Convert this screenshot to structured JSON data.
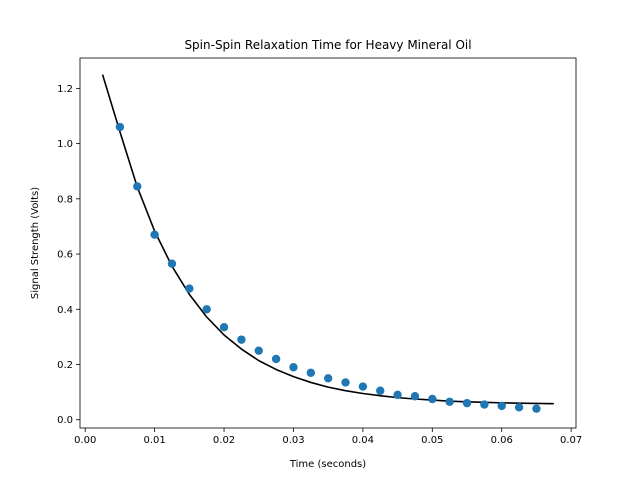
{
  "chart_data": {
    "type": "scatter",
    "title": "Spin-Spin Relaxation Time for Heavy Mineral Oil",
    "xlabel": "Time (seconds)",
    "ylabel": "Signal Strength (Volts)",
    "xlim": [
      -0.00075,
      0.0707
    ],
    "ylim": [
      -0.03,
      1.31
    ],
    "x_ticks": [
      0.0,
      0.01,
      0.02,
      0.03,
      0.04,
      0.05,
      0.06,
      0.07
    ],
    "x_tick_labels": [
      "0.00",
      "0.01",
      "0.02",
      "0.03",
      "0.04",
      "0.05",
      "0.06",
      "0.07"
    ],
    "y_ticks": [
      0.0,
      0.2,
      0.4,
      0.6,
      0.8,
      1.0,
      1.2
    ],
    "y_tick_labels": [
      "0.0",
      "0.2",
      "0.4",
      "0.6",
      "0.8",
      "1.0",
      "1.2"
    ],
    "grid": false,
    "legend": "none",
    "series": [
      {
        "kind": "scatter",
        "color": "#1f77b4",
        "x": [
          0.005,
          0.0075,
          0.01,
          0.0125,
          0.015,
          0.0175,
          0.02,
          0.0225,
          0.025,
          0.0275,
          0.03,
          0.0325,
          0.035,
          0.0375,
          0.04,
          0.0425,
          0.045,
          0.0475,
          0.05,
          0.0525,
          0.055,
          0.0575,
          0.06,
          0.0625,
          0.065
        ],
        "y": [
          1.06,
          0.845,
          0.67,
          0.565,
          0.475,
          0.4,
          0.335,
          0.29,
          0.25,
          0.22,
          0.19,
          0.17,
          0.15,
          0.135,
          0.12,
          0.105,
          0.09,
          0.085,
          0.075,
          0.065,
          0.06,
          0.055,
          0.05,
          0.045,
          0.04
        ]
      },
      {
        "kind": "line",
        "color": "#000000",
        "x": [
          0.0025,
          0.005,
          0.0075,
          0.01,
          0.0125,
          0.015,
          0.0175,
          0.02,
          0.0225,
          0.025,
          0.0275,
          0.03,
          0.0325,
          0.035,
          0.0375,
          0.04,
          0.0425,
          0.045,
          0.0475,
          0.05,
          0.0525,
          0.055,
          0.0575,
          0.06,
          0.0625,
          0.065,
          0.0675
        ],
        "y": [
          1.25,
          1.043,
          0.843,
          0.683,
          0.556,
          0.454,
          0.372,
          0.307,
          0.256,
          0.214,
          0.182,
          0.156,
          0.135,
          0.118,
          0.105,
          0.095,
          0.087,
          0.08,
          0.075,
          0.071,
          0.067,
          0.065,
          0.063,
          0.061,
          0.06,
          0.059,
          0.058
        ]
      }
    ]
  }
}
